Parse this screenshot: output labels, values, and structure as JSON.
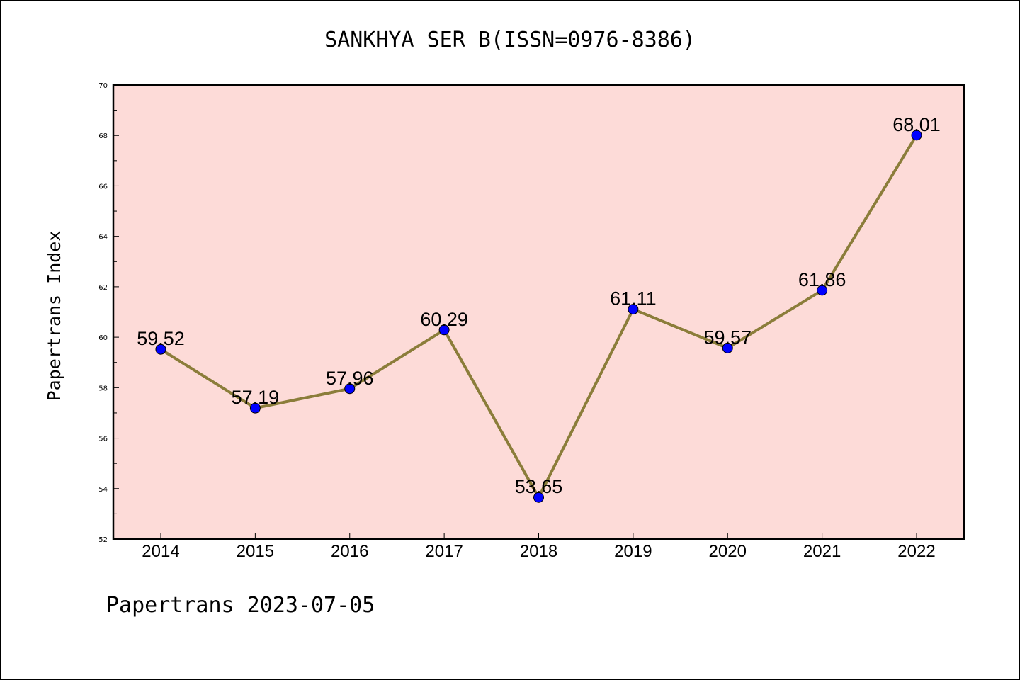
{
  "chart_data": {
    "type": "line",
    "title": "SANKHYA SER B(ISSN=0976-8386)",
    "xlabel": "",
    "ylabel": "Papertrans Index",
    "footer": "Papertrans 2023-07-05",
    "categories": [
      "2014",
      "2015",
      "2016",
      "2017",
      "2018",
      "2019",
      "2020",
      "2021",
      "2022"
    ],
    "values": [
      59.52,
      57.19,
      57.96,
      60.29,
      53.65,
      61.11,
      59.57,
      61.86,
      68.01
    ],
    "data_labels": [
      "59.52",
      "57.19",
      "57.96",
      "60.29",
      "53.65",
      "61.11",
      "59.57",
      "61.86",
      "68.01"
    ],
    "ylim": [
      52,
      70
    ],
    "yticks": [
      "52",
      "54",
      "56",
      "58",
      "60",
      "62",
      "64",
      "66",
      "68",
      "70"
    ],
    "grid": false,
    "colors": {
      "plot_background": "#fddbd8",
      "line": "#8b7d3a",
      "marker": "#0000ff"
    }
  }
}
